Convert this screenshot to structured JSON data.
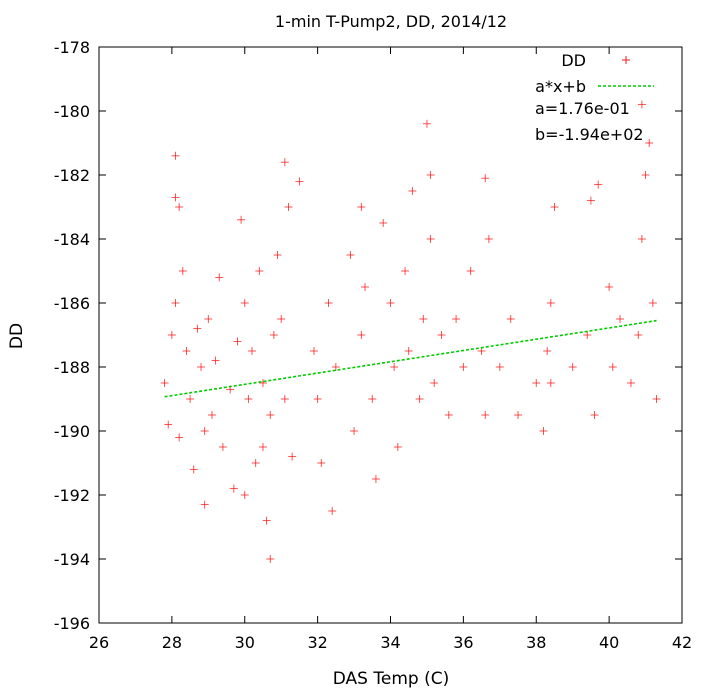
{
  "chart_data": {
    "type": "scatter",
    "title": "1-min T-Pump2, DD, 2014/12",
    "xlabel": "DAS Temp (C)",
    "ylabel": "DD",
    "xlim": [
      26,
      42
    ],
    "ylim": [
      -196,
      -178
    ],
    "xticks": [
      26,
      28,
      30,
      32,
      34,
      36,
      38,
      40,
      42
    ],
    "yticks": [
      -196,
      -194,
      -192,
      -190,
      -188,
      -186,
      -184,
      -182,
      -180,
      -178
    ],
    "grid": false,
    "legend_position": "top-right",
    "series": [
      {
        "name": "DD",
        "kind": "points",
        "marker": "+",
        "color": "#ff0000",
        "x": [
          27.8,
          27.9,
          28.0,
          28.1,
          28.1,
          28.2,
          28.2,
          28.3,
          28.4,
          28.5,
          28.6,
          28.7,
          28.8,
          28.9,
          28.9,
          29.0,
          29.1,
          29.2,
          29.3,
          29.4,
          29.6,
          29.7,
          29.8,
          29.9,
          30.0,
          30.1,
          30.2,
          30.3,
          30.4,
          30.5,
          30.5,
          30.6,
          30.7,
          30.8,
          30.9,
          31.0,
          31.1,
          31.2,
          31.3,
          31.5,
          31.9,
          32.0,
          32.1,
          32.3,
          32.4,
          32.5,
          32.9,
          33.0,
          33.2,
          33.3,
          33.5,
          33.6,
          33.8,
          34.0,
          34.1,
          34.2,
          34.4,
          34.5,
          34.6,
          34.8,
          34.9,
          35.0,
          35.1,
          35.2,
          35.4,
          35.6,
          35.8,
          36.0,
          36.2,
          36.5,
          36.6,
          36.7,
          37.0,
          37.3,
          37.5,
          38.0,
          38.2,
          38.3,
          38.4,
          38.5,
          39.0,
          39.4,
          39.6,
          39.7,
          40.0,
          40.1,
          40.3,
          40.6,
          40.8,
          40.9,
          41.0,
          41.1,
          41.2,
          41.3,
          28.1,
          30.0,
          30.7,
          31.1,
          33.2,
          35.1,
          36.6,
          38.4,
          39.5,
          40.9
        ],
        "y": [
          -188.5,
          -189.8,
          -187.0,
          -181.4,
          -186.0,
          -183.0,
          -190.2,
          -185.0,
          -187.5,
          -189.0,
          -191.2,
          -186.8,
          -188.0,
          -192.3,
          -190.0,
          -186.5,
          -189.5,
          -187.8,
          -185.2,
          -190.5,
          -188.7,
          -191.8,
          -187.2,
          -183.4,
          -186.0,
          -189.0,
          -187.5,
          -191.0,
          -185.0,
          -188.5,
          -190.5,
          -192.8,
          -189.5,
          -187.0,
          -184.5,
          -186.5,
          -189.0,
          -183.0,
          -190.8,
          -182.2,
          -187.5,
          -189.0,
          -191.0,
          -186.0,
          -192.5,
          -188.0,
          -184.5,
          -190.0,
          -187.0,
          -185.5,
          -189.0,
          -191.5,
          -183.5,
          -186.0,
          -188.0,
          -190.5,
          -185.0,
          -187.5,
          -182.5,
          -189.0,
          -186.5,
          -180.4,
          -184.0,
          -188.5,
          -187.0,
          -189.5,
          -186.5,
          -188.0,
          -185.0,
          -187.5,
          -189.5,
          -184.0,
          -188.0,
          -186.5,
          -189.5,
          -188.5,
          -190.0,
          -187.5,
          -186.0,
          -183.0,
          -188.0,
          -187.0,
          -189.5,
          -182.3,
          -185.5,
          -188.0,
          -186.5,
          -188.5,
          -187.0,
          -184.0,
          -182.0,
          -181.0,
          -186.0,
          -189.0,
          -182.7,
          -192.0,
          -194.0,
          -181.6,
          -183.0,
          -182.0,
          -182.1,
          -188.5,
          -182.8,
          -179.8
        ]
      },
      {
        "name": "a*x+b",
        "kind": "line",
        "color": "#00cc00",
        "x": [
          27.8,
          41.3
        ],
        "y": [
          -188.93,
          -186.55
        ]
      }
    ],
    "annotations": [
      "a=1.76e-01",
      "b=-1.94e+02"
    ]
  }
}
